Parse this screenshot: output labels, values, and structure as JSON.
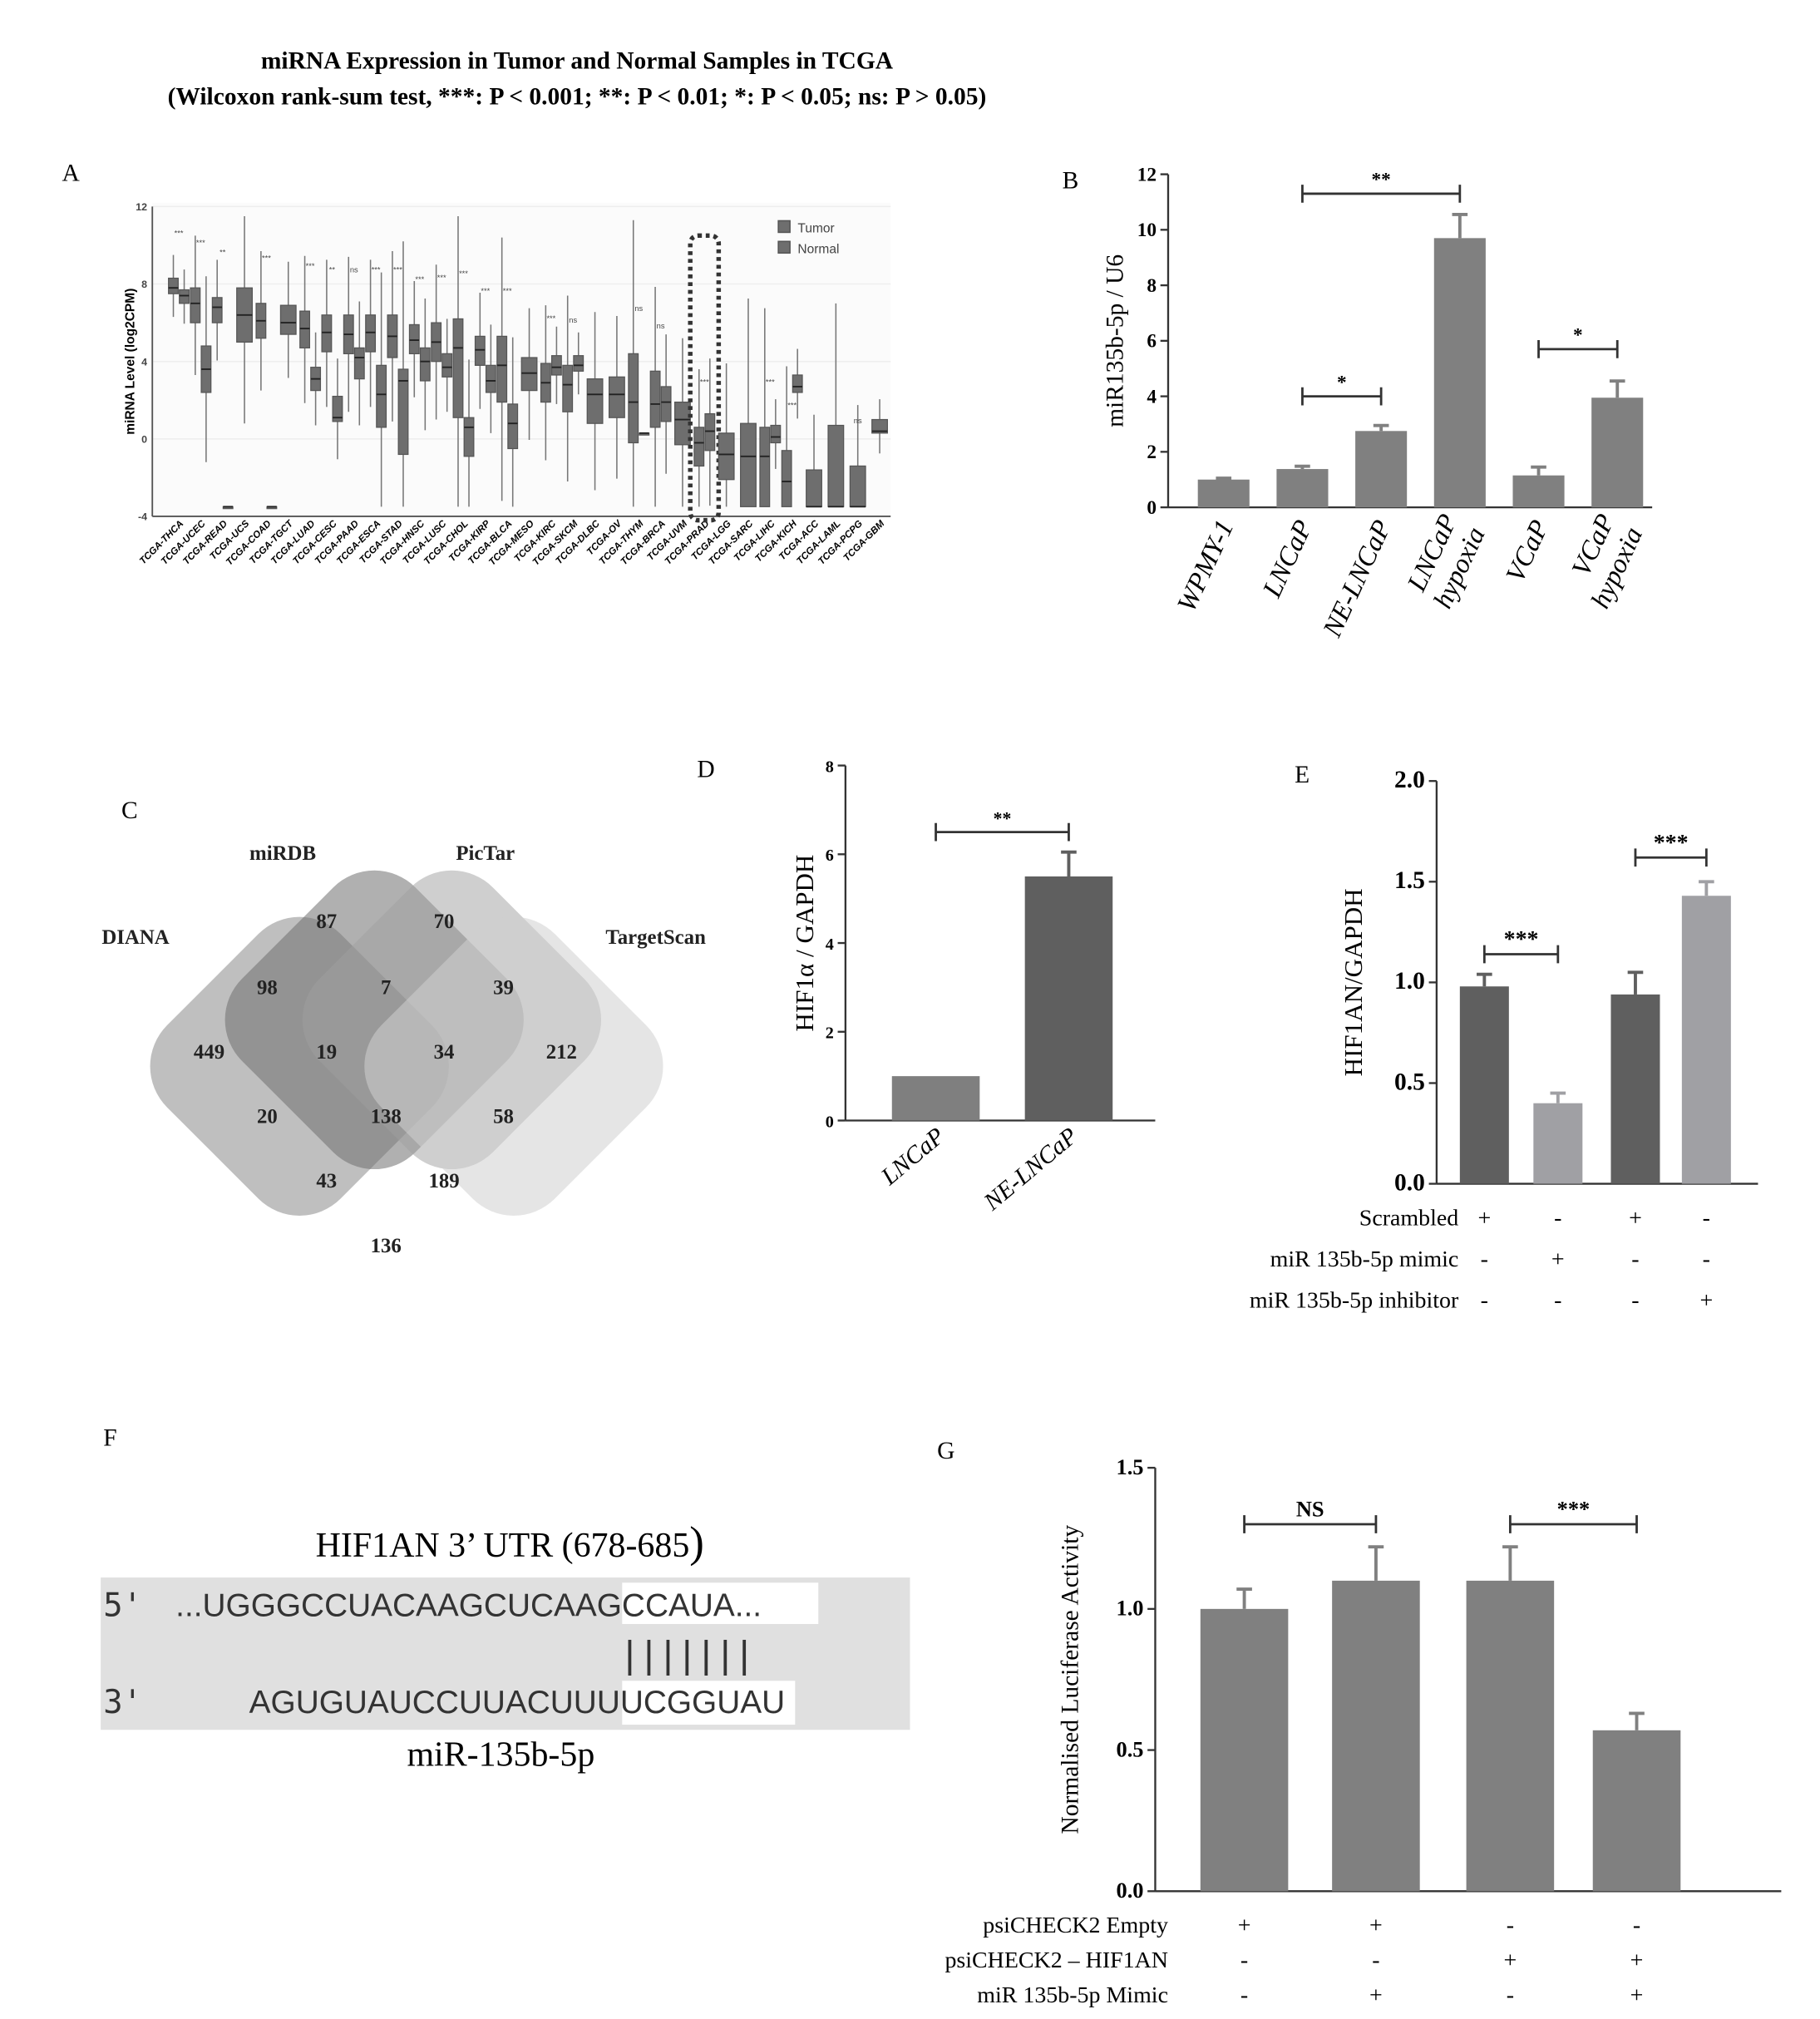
{
  "header": {
    "title_line1": "miRNA Expression in Tumor and Normal Samples in TCGA",
    "title_line2": "(Wilcoxon rank-sum test, ***: P < 0.001; **: P < 0.01; *: P < 0.05; ns: P > 0.05)"
  },
  "panels": {
    "A": "A",
    "B": "B",
    "C": "C",
    "D": "D",
    "E": "E",
    "F": "F",
    "G": "G"
  },
  "colors": {
    "bar": "#808080",
    "dark_bar": "#606060",
    "light_bar": "#a0a0a4",
    "venn": "#8a8a8a"
  },
  "chart_data": [
    {
      "id": "A",
      "type": "box",
      "ylabel": "miRNA Level (log2CPM)",
      "ylim": [
        -4,
        12
      ],
      "yticks": [
        "-4",
        "0",
        "4",
        "8",
        "12"
      ],
      "legend": [
        "Tumor",
        "Normal"
      ],
      "legend_position": "top-right",
      "highlighted": "TCGA-PRAD",
      "categories": [
        "TCGA-THCA",
        "TCGA-UCEC",
        "TCGA-READ",
        "TCGA-UCS",
        "TCGA-COAD",
        "TCGA-TGCT",
        "TCGA-LUAD",
        "TCGA-CESC",
        "TCGA-PAAD",
        "TCGA-ESCA",
        "TCGA-STAD",
        "TCGA-HNSC",
        "TCGA-LUSC",
        "TCGA-CHOL",
        "TCGA-KIRP",
        "TCGA-BLCA",
        "TCGA-MESO",
        "TCGA-KIRC",
        "TCGA-SKCM",
        "TCGA-DLBC",
        "TCGA-OV",
        "TCGA-THYM",
        "TCGA-BRCA",
        "TCGA-UVM",
        "TCGA-PRAD",
        "TCGA-LGG",
        "TCGA-SARC",
        "TCGA-LIHC",
        "TCGA-KICH",
        "TCGA-ACC",
        "TCGA-LAML",
        "TCGA-PCPG",
        "TCGA-GBM"
      ],
      "tumor": [
        [
          7.5,
          7.8,
          8.3
        ],
        [
          6,
          7,
          7.8
        ],
        [
          6,
          6.8,
          7.3
        ],
        [
          5,
          6.4,
          7.8
        ],
        [
          5.2,
          6.1,
          7
        ],
        [
          5.4,
          6,
          6.9
        ],
        [
          4.7,
          5.7,
          6.6
        ],
        [
          4.5,
          5.5,
          6.4
        ],
        [
          4.4,
          5.4,
          6.4
        ],
        [
          4.5,
          5.5,
          6.4
        ],
        [
          4.2,
          5.3,
          6.4
        ],
        [
          4.4,
          5.1,
          5.9
        ],
        [
          4,
          5,
          6
        ],
        [
          1.1,
          4.7,
          6.2
        ],
        [
          3.8,
          4.6,
          5.3
        ],
        [
          1.9,
          3.8,
          5.3
        ],
        [
          2.5,
          3.4,
          4.2
        ],
        [
          1.9,
          2.9,
          3.9
        ],
        [
          1.4,
          2.8,
          3.8
        ],
        [
          0.8,
          2.3,
          3.1
        ],
        [
          1.1,
          2.3,
          3.2
        ],
        [
          -0.2,
          1.9,
          4.4
        ],
        [
          0.6,
          1.8,
          3.5
        ],
        [
          -0.3,
          1,
          1.9
        ],
        [
          -1.4,
          -0.2,
          0.6
        ],
        [
          -2.1,
          -0.8,
          0.3
        ],
        [
          -3.5,
          -0.9,
          0.8
        ],
        [
          -3.5,
          -0.9,
          0.6
        ],
        [
          -3.5,
          -2.2,
          -0.6
        ],
        [
          -3.5,
          -3.5,
          -1.6
        ],
        [
          -3.5,
          -3.5,
          0.7
        ],
        [
          -3.5,
          -3.5,
          -1.4
        ],
        [
          0.3,
          0.4,
          1
        ]
      ],
      "normal": [
        [
          7,
          7.4,
          7.7
        ],
        [
          2.4,
          3.6,
          4.8
        ],
        [
          -3.5,
          -3.5,
          -3.5
        ],
        null,
        [
          -3.5,
          -3.5,
          -3.5
        ],
        null,
        [
          2.5,
          3.1,
          3.7
        ],
        [
          0.9,
          1.1,
          2.2
        ],
        [
          3.1,
          4.2,
          4.7
        ],
        [
          0.6,
          2.3,
          3.8
        ],
        [
          -0.8,
          3,
          3.6
        ],
        [
          3,
          4,
          4.7
        ],
        [
          3.2,
          3.7,
          4.4
        ],
        [
          -0.9,
          0.6,
          1.1
        ],
        [
          2.4,
          3,
          3.8
        ],
        [
          -0.5,
          0.8,
          1.8
        ],
        null,
        [
          3.3,
          3.7,
          4.3
        ],
        [
          3.5,
          3.8,
          4.3
        ],
        null,
        null,
        [
          0.3,
          0.3,
          0.3
        ],
        [
          0.9,
          1.9,
          2.7
        ],
        null,
        [
          -0.6,
          0.4,
          1.3
        ],
        null,
        null,
        [
          -0.2,
          0.1,
          0.7
        ],
        [
          2.4,
          2.7,
          3.3
        ],
        null,
        null,
        null,
        null
      ],
      "significance": [
        "***",
        "***",
        "**",
        "",
        "***",
        "",
        "***",
        "**",
        "ns",
        "***",
        "***",
        "***",
        "***",
        "***",
        "***",
        "***",
        "",
        "***",
        "ns",
        "",
        "",
        "ns",
        "ns",
        "",
        "***",
        "",
        "",
        "***",
        "***",
        "",
        "",
        "ns",
        ""
      ]
    },
    {
      "id": "B",
      "type": "bar",
      "ylabel": "miR135b-5p / U6",
      "ylim": [
        0,
        12
      ],
      "yticks": [
        "0",
        "2",
        "4",
        "6",
        "8",
        "10",
        "12"
      ],
      "categories": [
        [
          "WPMY-1"
        ],
        [
          "LNCaP"
        ],
        [
          "NE-LNCaP"
        ],
        [
          "LNCaP",
          "hypoxia"
        ],
        [
          "VCaP"
        ],
        [
          "VCaP",
          "hypoxia"
        ]
      ],
      "values": [
        1.0,
        1.38,
        2.75,
        9.7,
        1.15,
        3.95
      ],
      "errors": [
        0.05,
        0.1,
        0.2,
        0.85,
        0.3,
        0.6
      ],
      "comparisons": [
        {
          "from": 1,
          "to": 3,
          "y": 11.3,
          "label": "**"
        },
        {
          "from": 1,
          "to": 2,
          "y": 4.0,
          "label": "*"
        },
        {
          "from": 4,
          "to": 5,
          "y": 5.7,
          "label": "*"
        }
      ]
    },
    {
      "id": "D",
      "type": "bar",
      "ylabel": "HIF1α / GAPDH",
      "ylim": [
        0,
        8
      ],
      "yticks": [
        "0",
        "2",
        "4",
        "6",
        "8"
      ],
      "categories": [
        [
          "LNCaP"
        ],
        [
          "NE-LNCaP"
        ]
      ],
      "values": [
        1.0,
        5.5
      ],
      "errors": [
        0,
        0.55
      ],
      "comparisons": [
        {
          "from": 0,
          "to": 1,
          "y": 6.5,
          "label": "**"
        }
      ]
    },
    {
      "id": "E",
      "type": "bar",
      "ylabel": "HIF1AN/GAPDH",
      "ylim": [
        0,
        2.0
      ],
      "yticks": [
        "0.0",
        "0.5",
        "1.0",
        "1.5",
        "2.0"
      ],
      "values": [
        0.98,
        0.4,
        0.94,
        1.43
      ],
      "errors": [
        0.06,
        0.05,
        0.11,
        0.07
      ],
      "comparisons": [
        {
          "from": 0,
          "to": 1,
          "y": 1.14,
          "label": "***"
        },
        {
          "from": 2,
          "to": 3,
          "y": 1.62,
          "label": "***"
        }
      ],
      "conditions": [
        {
          "label": "Scrambled",
          "marks": [
            "+",
            "-",
            "+",
            "-"
          ]
        },
        {
          "label": "miR 135b-5p mimic",
          "marks": [
            "-",
            "+",
            "-",
            "-"
          ]
        },
        {
          "label": "miR 135b-5p inhibitor",
          "marks": [
            "-",
            "-",
            "-",
            "+"
          ]
        }
      ]
    },
    {
      "id": "G",
      "type": "bar",
      "ylabel": "Normalised Luciferase Activity",
      "ylim": [
        0,
        1.5
      ],
      "yticks": [
        "0.0",
        "0.5",
        "1.0",
        "1.5"
      ],
      "values": [
        1.0,
        1.1,
        1.1,
        0.57
      ],
      "errors": [
        0.07,
        0.12,
        0.12,
        0.06
      ],
      "comparisons": [
        {
          "from": 0,
          "to": 1,
          "y": 1.3,
          "label": "NS"
        },
        {
          "from": 2,
          "to": 3,
          "y": 1.3,
          "label": "***"
        }
      ],
      "conditions": [
        {
          "label": "psiCHECK2 Empty",
          "marks": [
            "+",
            "+",
            "-",
            "-"
          ]
        },
        {
          "label": "psiCHECK2 – HIF1AN",
          "marks": [
            "-",
            "-",
            "+",
            "+"
          ]
        },
        {
          "label": "miR 135b-5p Mimic",
          "marks": [
            "-",
            "+",
            "-",
            "+"
          ]
        }
      ]
    }
  ],
  "venn": {
    "sets": [
      "DIANA",
      "miRDB",
      "PicTar",
      "TargetScan"
    ],
    "counts": [
      "87",
      "70",
      "98",
      "7",
      "39",
      "449",
      "19",
      "34",
      "212",
      "20",
      "138",
      "58",
      "43",
      "189",
      "136"
    ]
  },
  "sequence": {
    "title": "HIF1AN 3’ UTR (678-685",
    "title_paren": ")",
    "utr_prime": "5'",
    "utr_prefix": "...UGGGCCUACAAGCUC",
    "utr_seed": "AAGCCAUA",
    "utr_suffix": "...",
    "pairing": "|||||||",
    "mir_prime": "3'",
    "mir_prefix": "AGUGUAUCCUUACUU",
    "mir_seed": "UUCGGUAU",
    "mir_label": "miR-135b-5p"
  }
}
